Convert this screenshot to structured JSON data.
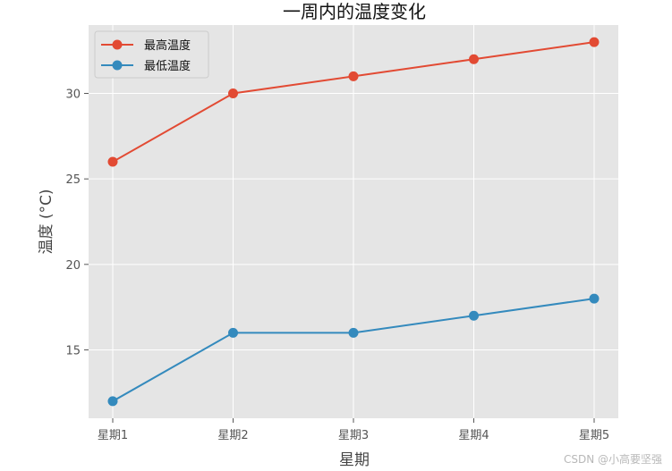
{
  "chart_data": {
    "type": "line",
    "title": "一周内的温度变化",
    "xlabel": "星期",
    "ylabel": "温度 (°C)",
    "categories": [
      "星期1",
      "星期2",
      "星期3",
      "星期4",
      "星期5"
    ],
    "series": [
      {
        "name": "最高温度",
        "values": [
          26,
          30,
          31,
          32,
          33
        ],
        "color": "#e24a33"
      },
      {
        "name": "最低温度",
        "values": [
          12,
          16,
          16,
          17,
          18
        ],
        "color": "#348abd"
      }
    ],
    "ylim": [
      11,
      34
    ],
    "yticks": [
      15,
      20,
      25,
      30
    ],
    "grid": true,
    "legend": "upper-left",
    "background": "#e5e5e5"
  },
  "watermark": "CSDN @小高要坚强"
}
